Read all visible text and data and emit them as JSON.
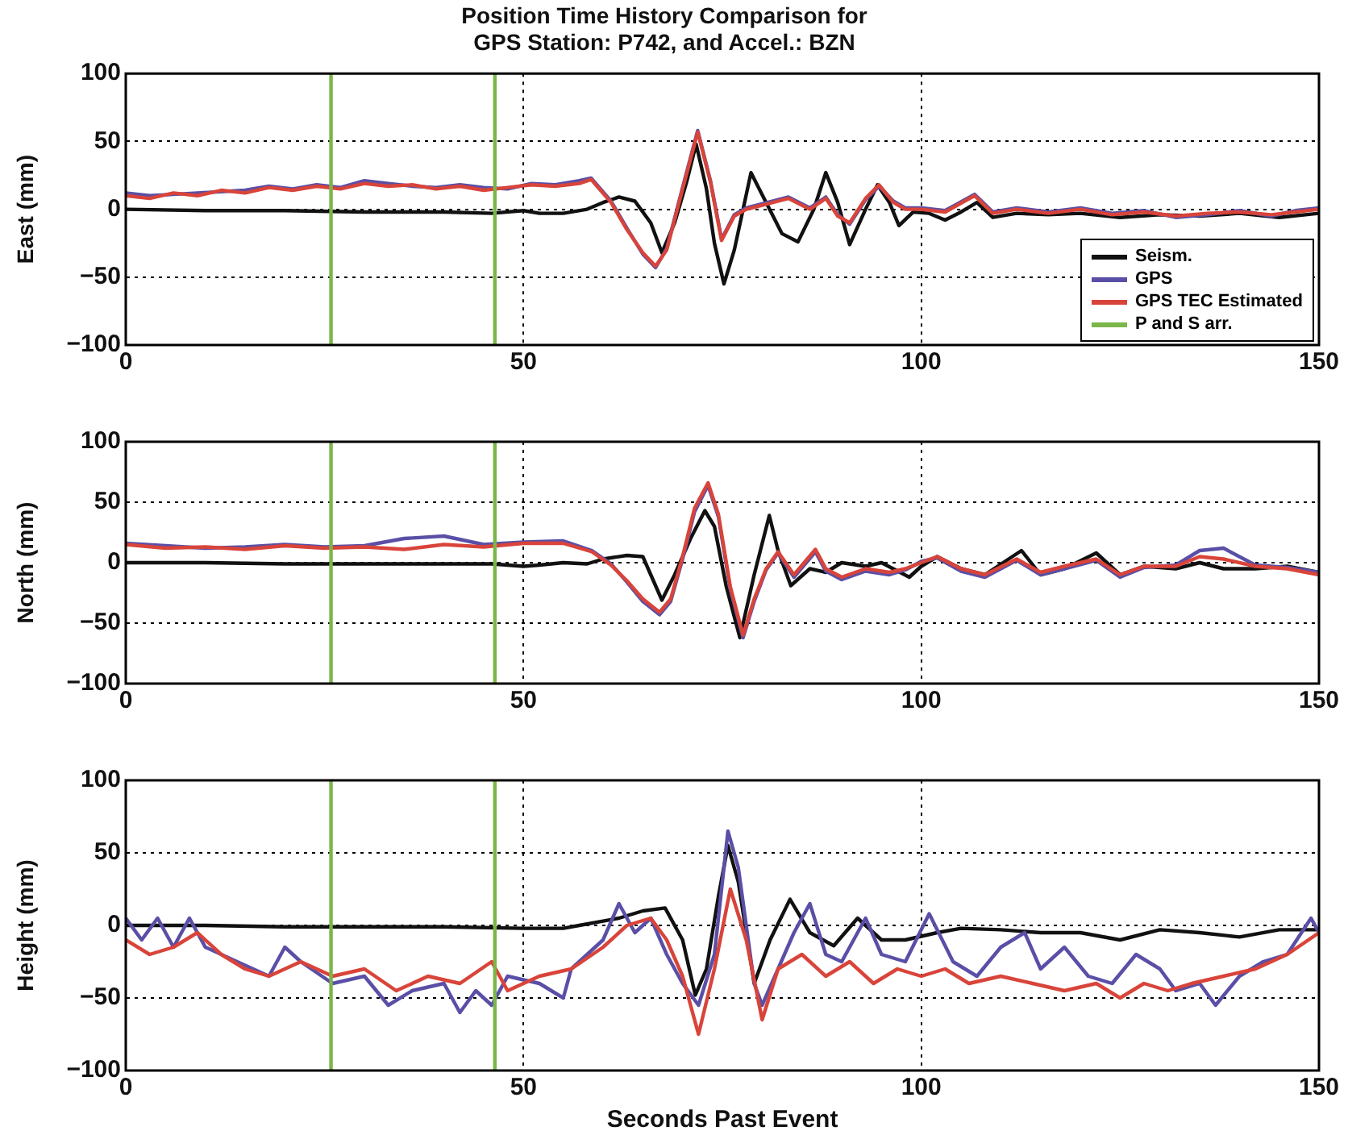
{
  "chart_data": [
    {
      "type": "line",
      "title": "Position Time History Comparison for\nGPS Station: P742, and Accel.: BZN",
      "ylabel": "East (mm)",
      "xlim": [
        0,
        150
      ],
      "xticks": [
        0,
        50,
        100,
        150
      ],
      "ylim": [
        -100,
        100
      ],
      "yticks": [
        -100,
        -50,
        0,
        50,
        100
      ],
      "grid": true,
      "legend": "bottom right",
      "marker": "none",
      "line_style": "solid",
      "series": [
        {
          "name": "Seism.",
          "color": "#111111",
          "x": [
            0,
            10,
            20,
            30,
            40,
            46,
            50,
            52,
            55,
            58,
            60,
            62,
            64,
            66,
            67.4,
            69,
            70.5,
            71.7,
            73,
            74,
            75.2,
            76.5,
            78.6,
            80.5,
            82.5,
            84.5,
            86.5,
            88,
            89.5,
            91,
            93,
            94.5,
            96,
            97.2,
            99,
            101,
            103,
            105,
            107,
            109,
            112,
            116,
            120,
            125,
            130,
            135,
            140,
            145,
            150
          ],
          "values": [
            0,
            -1,
            -1,
            -2,
            -2,
            -3,
            -1,
            -3,
            -3,
            0,
            5,
            9,
            6,
            -10,
            -32,
            -10,
            20,
            48,
            15,
            -25,
            -55,
            -30,
            27,
            5,
            -18,
            -24,
            0,
            27,
            5,
            -26,
            0,
            18,
            5,
            -12,
            -2,
            -3,
            -8,
            -2,
            5,
            -6,
            -3,
            -4,
            -3,
            -6,
            -4,
            -5,
            -3,
            -6,
            -3
          ]
        },
        {
          "name": "GPS",
          "color": "#5a4fa6",
          "x": [
            0,
            3,
            6,
            9,
            12,
            15,
            18,
            21,
            24,
            27,
            30,
            33,
            36,
            39,
            42,
            45,
            48,
            51,
            54,
            57,
            58.5,
            61,
            63,
            65,
            66.6,
            68,
            70,
            71.9,
            73.5,
            74.9,
            76.5,
            78,
            80,
            83.3,
            86,
            88,
            89.5,
            91,
            93,
            94.7,
            96.5,
            98,
            100,
            103,
            106.7,
            109,
            112,
            116,
            120,
            124,
            128,
            132,
            136,
            140,
            144,
            147,
            150
          ],
          "values": [
            12,
            10,
            11,
            12,
            13,
            14,
            17,
            15,
            18,
            16,
            21,
            19,
            17,
            16,
            18,
            16,
            15,
            19,
            18,
            21,
            23,
            6,
            -14,
            -33,
            -43,
            -29,
            16,
            58,
            21,
            -22,
            -4,
            1,
            4,
            9,
            1,
            9,
            -4,
            -11,
            7,
            17,
            6,
            1,
            1,
            -1,
            11,
            -2,
            1,
            -2,
            1,
            -3,
            -1,
            -6,
            -4,
            -1,
            -5,
            -1,
            1
          ]
        },
        {
          "name": "GPS TEC Estimated",
          "color": "#d9443a",
          "x": [
            0,
            3,
            6,
            9,
            12,
            15,
            18,
            21,
            24,
            27,
            30,
            33,
            36,
            39,
            42,
            45,
            48,
            51,
            54,
            57,
            58.5,
            61,
            63,
            65,
            66.6,
            68,
            70,
            71.9,
            73.5,
            74.9,
            76.5,
            78,
            80,
            83.3,
            86,
            88,
            89.5,
            91,
            93,
            94.7,
            96.5,
            98,
            100,
            103,
            106.7,
            109,
            112,
            116,
            120,
            124,
            128,
            132,
            136,
            140,
            144,
            147,
            150
          ],
          "values": [
            10,
            8,
            12,
            10,
            14,
            12,
            16,
            14,
            17,
            15,
            19,
            17,
            18,
            15,
            17,
            14,
            16,
            18,
            17,
            19,
            22,
            5,
            -15,
            -32,
            -42,
            -30,
            15,
            57,
            20,
            -23,
            -5,
            0,
            3,
            8,
            0,
            8,
            -5,
            -10,
            8,
            18,
            5,
            0,
            0,
            -2,
            10,
            -3,
            0,
            -3,
            0,
            -4,
            -2,
            -5,
            -3,
            -2,
            -4,
            -2,
            0
          ]
        },
        {
          "name": "P and S arr.",
          "color": "#7ab648",
          "x": [
            25.8,
            25.8
          ],
          "values": [
            -100,
            100
          ]
        },
        {
          "color": "#7ab648",
          "x": [
            46.4,
            46.4
          ],
          "values": [
            -100,
            100
          ]
        }
      ]
    },
    {
      "type": "line",
      "ylabel": "North (mm)",
      "xlim": [
        0,
        150
      ],
      "xticks": [
        0,
        50,
        100,
        150
      ],
      "ylim": [
        -100,
        100
      ],
      "yticks": [
        -100,
        -50,
        0,
        50,
        100
      ],
      "grid": true,
      "marker": "none",
      "line_style": "solid",
      "series": [
        {
          "color": "#111111",
          "x": [
            0,
            10,
            20,
            30,
            40,
            46,
            50,
            52,
            55,
            58,
            60,
            63,
            65,
            67.4,
            69,
            71,
            72.8,
            74,
            75.5,
            77.2,
            79,
            80.9,
            82,
            83.6,
            86,
            88,
            90,
            93,
            95,
            98.5,
            100,
            102,
            105,
            108,
            112.6,
            115,
            118,
            122,
            125,
            128,
            132,
            135,
            138,
            142,
            146,
            150
          ],
          "values": [
            0,
            0,
            -1,
            -1,
            -1,
            -1,
            -3,
            -2,
            0,
            -1,
            3,
            6,
            5,
            -31,
            -10,
            20,
            43,
            30,
            -20,
            -62,
            -10,
            39,
            10,
            -19,
            -5,
            -8,
            0,
            -3,
            0,
            -12,
            -3,
            5,
            -5,
            -10,
            10,
            -10,
            -5,
            8,
            -10,
            -3,
            -5,
            0,
            -5,
            -5,
            -3,
            -8
          ]
        },
        {
          "color": "#5a4fa6",
          "x": [
            0,
            5,
            10,
            15,
            20,
            25,
            30,
            35,
            40,
            45,
            50,
            55,
            58.6,
            61,
            63,
            65,
            67.1,
            68.5,
            70,
            71.5,
            73.2,
            74.5,
            76,
            77.6,
            79,
            80.5,
            82,
            84,
            86.7,
            88,
            90,
            93,
            96,
            98,
            100,
            102,
            105,
            108,
            112,
            115,
            118,
            122,
            125,
            128,
            132,
            135,
            138,
            142,
            146,
            150
          ],
          "values": [
            16,
            14,
            12,
            13,
            15,
            13,
            14,
            20,
            22,
            15,
            17,
            18,
            10,
            -1,
            -16,
            -32,
            -43,
            -32,
            3,
            42,
            64,
            38,
            -22,
            -62,
            -32,
            -6,
            8,
            -12,
            9,
            -7,
            -14,
            -7,
            -10,
            -6,
            1,
            4,
            -7,
            -12,
            2,
            -10,
            -5,
            2,
            -12,
            -4,
            -2,
            10,
            12,
            -2,
            -4,
            -8
          ]
        },
        {
          "color": "#d9443a",
          "x": [
            0,
            5,
            10,
            15,
            20,
            25,
            30,
            35,
            40,
            45,
            50,
            55,
            58.6,
            61,
            63,
            65,
            67.1,
            68.5,
            70,
            71.5,
            73.2,
            74.5,
            76,
            77.6,
            79,
            80.5,
            82,
            84,
            86.7,
            88,
            90,
            93,
            96,
            98,
            100,
            102,
            105,
            108,
            112,
            115,
            118,
            122,
            125,
            128,
            132,
            135,
            138,
            142,
            146,
            150
          ],
          "values": [
            15,
            12,
            13,
            11,
            14,
            12,
            13,
            11,
            15,
            13,
            16,
            16,
            9,
            -2,
            -15,
            -30,
            -41,
            -30,
            5,
            45,
            66,
            40,
            -20,
            -60,
            -30,
            -5,
            9,
            -10,
            11,
            -5,
            -12,
            -5,
            -8,
            -5,
            0,
            5,
            -5,
            -10,
            3,
            -8,
            -3,
            3,
            -10,
            -3,
            -3,
            5,
            3,
            -3,
            -5,
            -10
          ]
        },
        {
          "color": "#7ab648",
          "x": [
            25.8,
            25.8
          ],
          "values": [
            -100,
            100
          ]
        },
        {
          "color": "#7ab648",
          "x": [
            46.4,
            46.4
          ],
          "values": [
            -100,
            100
          ]
        }
      ]
    },
    {
      "type": "line",
      "xlabel": "Seconds Past Event",
      "ylabel": "Height (mm)",
      "xlim": [
        0,
        150
      ],
      "xticks": [
        0,
        50,
        100,
        150
      ],
      "ylim": [
        -100,
        100
      ],
      "yticks": [
        -100,
        -50,
        0,
        50,
        100
      ],
      "grid": true,
      "marker": "none",
      "line_style": "solid",
      "series": [
        {
          "color": "#111111",
          "x": [
            0,
            10,
            20,
            30,
            40,
            50,
            55,
            57,
            60,
            62,
            65,
            67.8,
            70,
            71.6,
            73,
            74.5,
            75.7,
            77,
            79,
            81,
            83.5,
            86,
            89,
            92,
            95,
            98,
            102,
            105,
            110,
            115,
            120,
            125,
            130,
            135,
            140,
            145,
            150
          ],
          "values": [
            0,
            0,
            -1,
            -1,
            -1,
            -2,
            -2,
            0,
            3,
            5,
            10,
            12,
            -10,
            -48,
            -30,
            20,
            55,
            30,
            -40,
            -10,
            18,
            -5,
            -14,
            5,
            -10,
            -10,
            -5,
            -2,
            -3,
            -5,
            -5,
            -10,
            -3,
            -5,
            -8,
            -3,
            -3
          ]
        },
        {
          "color": "#5a4fa6",
          "x": [
            0,
            2,
            4,
            6,
            8,
            10,
            14,
            18,
            20,
            22,
            26,
            30,
            33,
            36,
            40,
            42,
            44,
            46,
            48,
            52,
            55,
            56,
            58,
            60,
            62,
            64,
            66,
            68,
            70,
            72,
            74,
            75.7,
            77,
            79,
            80,
            82,
            84,
            86,
            88,
            90,
            92,
            93,
            95,
            98,
            101,
            104,
            107,
            110,
            113,
            115,
            118,
            121,
            124,
            127,
            130,
            132,
            135,
            137,
            140,
            143,
            146,
            149,
            150
          ],
          "values": [
            5,
            -10,
            5,
            -15,
            5,
            -15,
            -25,
            -35,
            -15,
            -25,
            -40,
            -35,
            -55,
            -45,
            -40,
            -60,
            -45,
            -55,
            -35,
            -40,
            -50,
            -30,
            -20,
            -10,
            15,
            -5,
            5,
            -20,
            -40,
            -55,
            -20,
            65,
            40,
            -40,
            -55,
            -30,
            -5,
            15,
            -20,
            -25,
            -5,
            5,
            -20,
            -25,
            8,
            -25,
            -35,
            -15,
            -5,
            -30,
            -15,
            -35,
            -40,
            -20,
            -30,
            -45,
            -40,
            -55,
            -35,
            -25,
            -20,
            5,
            -5
          ]
        },
        {
          "color": "#d9443a",
          "x": [
            0,
            3,
            6,
            9,
            12,
            15,
            18,
            22,
            26,
            30,
            34,
            38,
            42,
            46,
            48,
            52,
            56,
            60,
            63,
            66,
            68,
            70,
            72,
            74,
            76,
            78,
            80,
            82,
            85,
            88,
            91,
            94,
            97,
            100,
            103,
            106,
            110,
            114,
            118,
            122,
            125,
            128,
            131,
            134,
            138,
            142,
            146,
            150
          ],
          "values": [
            -10,
            -20,
            -15,
            -5,
            -20,
            -30,
            -35,
            -25,
            -35,
            -30,
            -45,
            -35,
            -40,
            -25,
            -45,
            -35,
            -30,
            -15,
            0,
            5,
            -10,
            -35,
            -75,
            -30,
            25,
            -10,
            -65,
            -30,
            -20,
            -35,
            -25,
            -40,
            -30,
            -35,
            -30,
            -40,
            -35,
            -40,
            -45,
            -40,
            -50,
            -40,
            -45,
            -40,
            -35,
            -30,
            -20,
            -5
          ]
        },
        {
          "color": "#7ab648",
          "x": [
            25.8,
            25.8
          ],
          "values": [
            -100,
            100
          ]
        },
        {
          "color": "#7ab648",
          "x": [
            46.4,
            46.4
          ],
          "values": [
            -100,
            100
          ]
        }
      ]
    }
  ]
}
